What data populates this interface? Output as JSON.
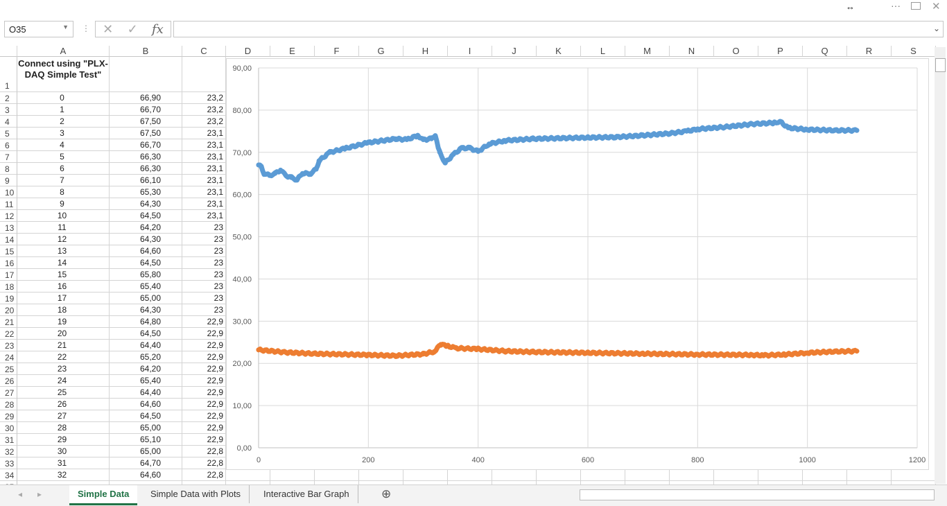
{
  "window": {
    "controls": [
      "resize-icon",
      "more-icon",
      "restore-icon",
      "close-icon"
    ]
  },
  "formula_bar": {
    "name_box": "O35",
    "cancel": "✕",
    "enter": "✓",
    "fx": "fx",
    "value": ""
  },
  "columns": [
    "A",
    "B",
    "C",
    "D",
    "E",
    "F",
    "G",
    "H",
    "I",
    "J",
    "K",
    "L",
    "M",
    "N",
    "O",
    "P",
    "Q",
    "R",
    "S"
  ],
  "header_cell": "Connect using \"PLX-DAQ Simple Test\"",
  "rows": {
    "A": [
      "0",
      "1",
      "2",
      "3",
      "4",
      "5",
      "6",
      "7",
      "8",
      "9",
      "10",
      "11",
      "12",
      "13",
      "14",
      "15",
      "16",
      "17",
      "18",
      "19",
      "20",
      "21",
      "22",
      "23",
      "24",
      "25",
      "26",
      "27",
      "28",
      "29",
      "30",
      "31",
      "32"
    ],
    "B": [
      "66,90",
      "66,70",
      "67,50",
      "67,50",
      "66,70",
      "66,30",
      "66,30",
      "66,10",
      "65,30",
      "64,30",
      "64,50",
      "64,20",
      "64,30",
      "64,60",
      "64,50",
      "65,80",
      "65,40",
      "65,00",
      "64,30",
      "64,80",
      "64,50",
      "64,40",
      "65,20",
      "64,20",
      "65,40",
      "64,40",
      "64,60",
      "64,50",
      "65,00",
      "65,10",
      "65,00",
      "64,70",
      "64,60"
    ],
    "C": [
      "23,2",
      "23,2",
      "23,2",
      "23,1",
      "23,1",
      "23,1",
      "23,1",
      "23,1",
      "23,1",
      "23,1",
      "23,1",
      "23",
      "23",
      "23",
      "23",
      "23",
      "23",
      "23",
      "23",
      "22,9",
      "22,9",
      "22,9",
      "22,9",
      "22,9",
      "22,9",
      "22,9",
      "22,9",
      "22,9",
      "22,9",
      "22,9",
      "22,8",
      "22,8",
      "22,8"
    ]
  },
  "sheet_tabs": [
    "Simple Data",
    "Simple Data with Plots",
    "Interactive Bar Graph"
  ],
  "active_tab": 0,
  "chart_data": {
    "type": "scatter",
    "xlim": [
      0,
      1200
    ],
    "ylim": [
      0,
      90
    ],
    "xticks": [
      "0",
      "200",
      "400",
      "600",
      "800",
      "1000",
      "1200"
    ],
    "yticks": [
      "0,00",
      "10,00",
      "20,00",
      "30,00",
      "40,00",
      "50,00",
      "60,00",
      "70,00",
      "80,00",
      "90,00"
    ],
    "grid": true,
    "series": [
      {
        "color": "#5b9bd5",
        "points": [
          [
            0,
            67
          ],
          [
            5,
            66.5
          ],
          [
            10,
            65
          ],
          [
            20,
            64.5
          ],
          [
            30,
            65
          ],
          [
            40,
            65.8
          ],
          [
            50,
            64.5
          ],
          [
            60,
            64
          ],
          [
            70,
            63.5
          ],
          [
            80,
            65
          ],
          [
            95,
            65
          ],
          [
            105,
            66
          ],
          [
            110,
            68
          ],
          [
            130,
            70
          ],
          [
            160,
            71
          ],
          [
            200,
            72.3
          ],
          [
            250,
            73.2
          ],
          [
            270,
            73
          ],
          [
            290,
            74
          ],
          [
            300,
            73
          ],
          [
            315,
            73.2
          ],
          [
            322,
            73.8
          ],
          [
            330,
            70
          ],
          [
            340,
            67.5
          ],
          [
            355,
            69.5
          ],
          [
            370,
            71
          ],
          [
            385,
            71
          ],
          [
            400,
            70.2
          ],
          [
            420,
            72
          ],
          [
            450,
            72.8
          ],
          [
            500,
            73.2
          ],
          [
            600,
            73.5
          ],
          [
            650,
            73.6
          ],
          [
            700,
            74
          ],
          [
            750,
            74.5
          ],
          [
            780,
            75
          ],
          [
            800,
            75.5
          ],
          [
            850,
            76
          ],
          [
            900,
            76.7
          ],
          [
            940,
            77
          ],
          [
            950,
            77.3
          ],
          [
            965,
            75.8
          ],
          [
            1000,
            75.4
          ],
          [
            1050,
            75.2
          ],
          [
            1090,
            75.2
          ]
        ]
      },
      {
        "color": "#ed7d31",
        "points": [
          [
            0,
            23.2
          ],
          [
            50,
            22.6
          ],
          [
            100,
            22.3
          ],
          [
            200,
            22
          ],
          [
            250,
            21.8
          ],
          [
            300,
            22.2
          ],
          [
            320,
            22.8
          ],
          [
            332,
            24.5
          ],
          [
            345,
            24.1
          ],
          [
            360,
            23.6
          ],
          [
            400,
            23.4
          ],
          [
            450,
            22.9
          ],
          [
            500,
            22.7
          ],
          [
            600,
            22.5
          ],
          [
            700,
            22.3
          ],
          [
            800,
            22.1
          ],
          [
            900,
            22
          ],
          [
            920,
            21.9
          ],
          [
            960,
            22.1
          ],
          [
            1000,
            22.5
          ],
          [
            1050,
            22.8
          ],
          [
            1090,
            22.9
          ]
        ]
      }
    ]
  }
}
